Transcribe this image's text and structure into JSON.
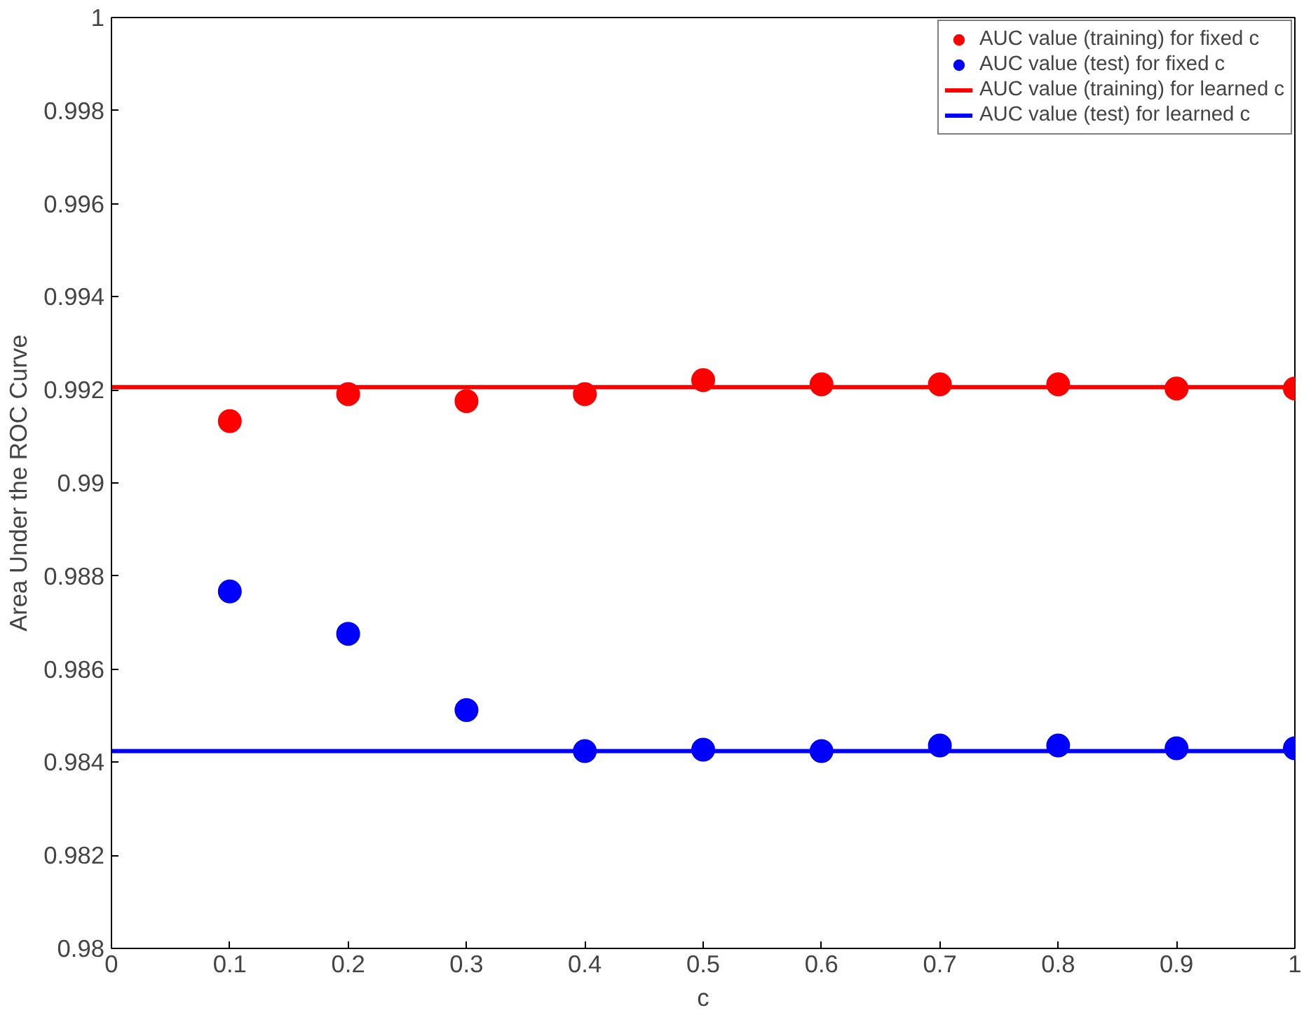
{
  "chart_data": {
    "type": "scatter",
    "xlabel": "c",
    "ylabel": "Area Under the ROC Curve",
    "xlim": [
      0,
      1
    ],
    "ylim": [
      0.98,
      1
    ],
    "xticks": [
      0,
      0.1,
      0.2,
      0.3,
      0.4,
      0.5,
      0.6,
      0.7,
      0.8,
      0.9,
      1
    ],
    "yticks": [
      0.98,
      0.982,
      0.984,
      0.986,
      0.988,
      0.99,
      0.992,
      0.994,
      0.996,
      0.998,
      1
    ],
    "grid": false,
    "legend": "top right",
    "series": [
      {
        "name": "AUC value (training) for fixed c",
        "marker": "circle",
        "color": "#ff0000",
        "x": [
          0.1,
          0.2,
          0.3,
          0.4,
          0.5,
          0.6,
          0.7,
          0.8,
          0.9,
          1
        ],
        "values": [
          0.99133,
          0.99191,
          0.99176,
          0.99191,
          0.99221,
          0.99212,
          0.99212,
          0.99212,
          0.99203,
          0.99203
        ]
      },
      {
        "name": "AUC value (test) for fixed c",
        "marker": "circle",
        "color": "#0000ff",
        "x": [
          0.1,
          0.2,
          0.3,
          0.4,
          0.5,
          0.6,
          0.7,
          0.8,
          0.9,
          1
        ],
        "values": [
          0.98767,
          0.98676,
          0.98512,
          0.98424,
          0.98427,
          0.98424,
          0.98436,
          0.98436,
          0.9843,
          0.9843
        ]
      },
      {
        "name": "AUC value (training) for learned c",
        "type": "line",
        "marker": "none",
        "line_style": "solid",
        "color": "#ff0000",
        "x": [
          0,
          1
        ],
        "values": [
          0.99206,
          0.99206
        ]
      },
      {
        "name": "AUC value (test) for learned c",
        "type": "line",
        "marker": "none",
        "line_style": "solid",
        "color": "#0000ff",
        "x": [
          0,
          1
        ],
        "values": [
          0.98424,
          0.98424
        ]
      }
    ]
  }
}
